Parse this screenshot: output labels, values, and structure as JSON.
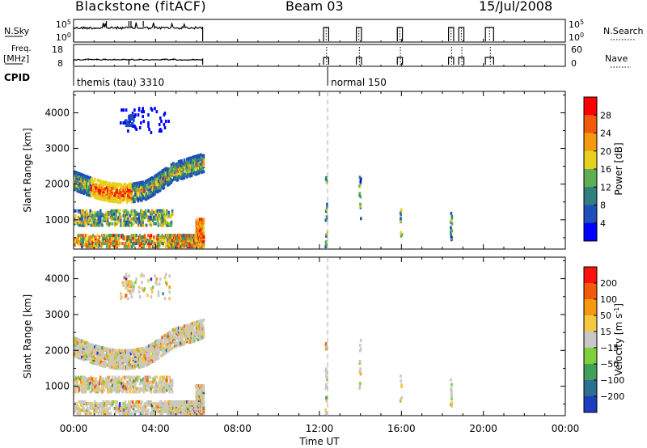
{
  "header": {
    "station": "Blackstone (fitACF)",
    "beam": "Beam 03",
    "date": "15/Jul/2008"
  },
  "status_panels": {
    "nsky_label": "N.Sky",
    "nsky_ticks": [
      "10^5",
      "10^0"
    ],
    "nsearch_label": "N.Search",
    "nsearch_ticks": [
      "10^5",
      "10^0"
    ],
    "freq_label": "Freq.",
    "freq_unit": "[MHz]",
    "freq_ticks": [
      "18",
      "8"
    ],
    "nave_label": "Nave",
    "nave_ticks": [
      "60",
      "0"
    ],
    "cpid_label": "CPID",
    "cpid_modes": [
      {
        "name": "themis (tau) 3310",
        "start_hour": 0.0
      },
      {
        "name": "normal 150",
        "start_hour": 12.4
      }
    ]
  },
  "x_axis": {
    "label": "Time UT",
    "ticks": [
      "00:00",
      "04:00",
      "08:00",
      "12:00",
      "16:00",
      "20:00",
      "00:00"
    ],
    "range_hours": [
      0,
      24
    ]
  },
  "chart_data": [
    {
      "type": "heatmap",
      "name": "power",
      "ylabel": "Slant Range [km]",
      "yticks": [
        "1000",
        "2000",
        "3000",
        "4000"
      ],
      "ylim": [
        180,
        4600
      ],
      "colorbar_label": "Power [dB]",
      "colorbar_ticks": [
        "4",
        "8",
        "12",
        "16",
        "20",
        "24",
        "28"
      ],
      "colorbar_colors": [
        "#0000ff",
        "#1f4fb8",
        "#2f7f7f",
        "#5fae4f",
        "#e6d21e",
        "#f59a10",
        "#f25a0a",
        "#ff0000"
      ],
      "dashed_marker_hour": 12.4
    },
    {
      "type": "heatmap",
      "name": "velocity",
      "ylabel": "Slant Range [km]",
      "yticks": [
        "1000",
        "2000",
        "3000",
        "4000"
      ],
      "ylim": [
        180,
        4600
      ],
      "colorbar_label": "Velocity [m s^-1]",
      "colorbar_ticks": [
        "200",
        "100",
        "50",
        "15",
        "-15",
        "-50",
        "-100",
        "-200"
      ],
      "colorbar_colors": [
        "#1d3fbf",
        "#2c6f8f",
        "#3fa05a",
        "#7fcf3f",
        "#c8c8c8",
        "#f5c842",
        "#f59a10",
        "#f25a0a",
        "#ff1010"
      ],
      "dashed_marker_hour": 12.4
    }
  ]
}
